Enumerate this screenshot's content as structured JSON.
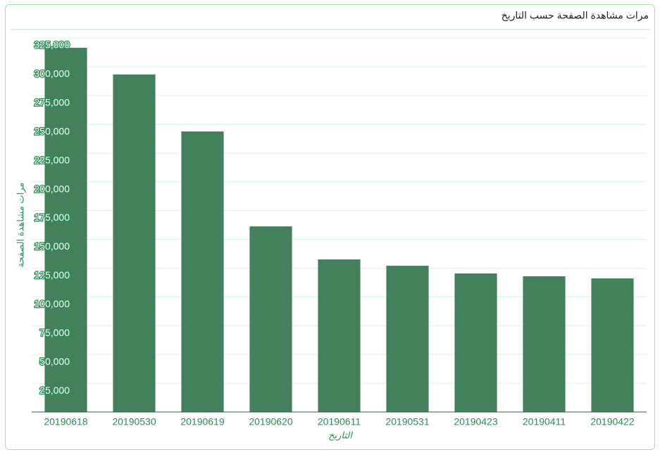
{
  "chart_data": {
    "type": "bar",
    "title": "مرات مشاهدة الصفحة حسب التاريخ",
    "x_label": "التاريخ",
    "y_label": "مرات مشاهدة الصفحة",
    "categories": [
      "20190618",
      "20190530",
      "20190619",
      "20190620",
      "20190611",
      "20190531",
      "20190423",
      "20190411",
      "20190422"
    ],
    "values": [
      316500,
      293300,
      243800,
      161300,
      132600,
      127100,
      120400,
      117900,
      116100
    ],
    "color": "#44805c",
    "ylim": [
      0,
      325000
    ],
    "yticks": [
      {
        "value": 25000,
        "label": "25,000"
      },
      {
        "value": 50000,
        "label": "50,000"
      },
      {
        "value": 75000,
        "label": "75,000"
      },
      {
        "value": 100000,
        "label": "100,000"
      },
      {
        "value": 125000,
        "label": "125,000"
      },
      {
        "value": 150000,
        "label": "150,000"
      },
      {
        "value": 175000,
        "label": "175,000"
      },
      {
        "value": 200000,
        "label": "200,000"
      },
      {
        "value": 225000,
        "label": "225,000"
      },
      {
        "value": 250000,
        "label": "250,000"
      },
      {
        "value": 275000,
        "label": "275,000"
      },
      {
        "value": 300000,
        "label": "300,000"
      },
      {
        "value": 325000,
        "label": "325,000"
      }
    ],
    "grid": true
  }
}
